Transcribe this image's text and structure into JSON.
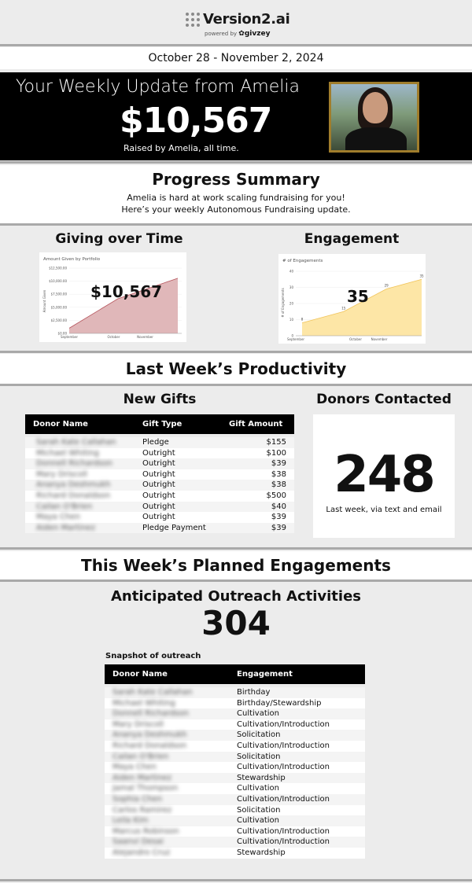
{
  "brand": {
    "name": "Version2.ai",
    "powered_by": "powered by",
    "partner": "givzey"
  },
  "date_range": "October 28 - November 2, 2024",
  "hero": {
    "title": "Your Weekly Update from Amelia",
    "amount": "$10,567",
    "caption": "Raised by Amelia, all time."
  },
  "progress": {
    "title": "Progress Summary",
    "line1": "Amelia is hard at work scaling fundraising for you!",
    "line2": "Here’s your weekly Autonomous Fundraising update."
  },
  "giving_chart": {
    "section_title": "Giving over Time",
    "overlay": "$10,567",
    "chart_data": {
      "type": "area",
      "title": "Amount Given by Portfolio",
      "xlabel": "",
      "ylabel": "Amount Given",
      "categories": [
        "September",
        "October",
        "November"
      ],
      "values": [
        1000,
        6600,
        10567
      ],
      "ylim": [
        0,
        12500
      ],
      "yticks": [
        "$0.00",
        "$2,500.00",
        "$5,000.00",
        "$7,500.00",
        "$10,000.00",
        "$12,500.00"
      ],
      "color": "#e0b7b9"
    }
  },
  "engagement_chart": {
    "section_title": "Engagement",
    "overlay": "35",
    "chart_data": {
      "type": "area",
      "title": "# of Engagements",
      "xlabel": "",
      "ylabel": "# of Engagements",
      "categories": [
        "September",
        "October",
        "November"
      ],
      "points": [
        {
          "label": "8",
          "x": 0.05,
          "y": 8
        },
        {
          "label": "15",
          "x": 0.38,
          "y": 15
        },
        {
          "label": "29",
          "x": 0.72,
          "y": 29
        },
        {
          "label": "35",
          "x": 1.0,
          "y": 35
        }
      ],
      "ylim": [
        0,
        40
      ],
      "yticks": [
        "0",
        "10",
        "20",
        "30",
        "40"
      ],
      "color": "#fde6a6"
    }
  },
  "productivity": {
    "title": "Last Week’s Productivity"
  },
  "gifts": {
    "title": "New Gifts",
    "headers": [
      "Donor Name",
      "Gift Type",
      "Gift Amount"
    ],
    "rows": [
      {
        "name": "Sarah Kate Callahan",
        "type": "Pledge",
        "amount": "$155"
      },
      {
        "name": "Michael Whiting",
        "type": "Outright",
        "amount": "$100"
      },
      {
        "name": "Donnell Richardson",
        "type": "Outright",
        "amount": "$39"
      },
      {
        "name": "Mary Driscoll",
        "type": "Outright",
        "amount": "$38"
      },
      {
        "name": "Ananya Deshmukh",
        "type": "Outright",
        "amount": "$38"
      },
      {
        "name": "Richard Donaldson",
        "type": "Outright",
        "amount": "$500"
      },
      {
        "name": "Cailan O'Brien",
        "type": "Outright",
        "amount": "$40"
      },
      {
        "name": "Maya Chen",
        "type": "Outright",
        "amount": "$39"
      },
      {
        "name": "Aiden Martinez",
        "type": "Pledge Payment",
        "amount": "$39"
      }
    ]
  },
  "donors_contacted": {
    "title": "Donors Contacted",
    "count": "248",
    "caption": "Last week, via text and email"
  },
  "planned": {
    "title": "This Week’s Planned Engagements"
  },
  "outreach": {
    "title": "Anticipated Outreach Activities",
    "count": "304",
    "snapshot_label": "Snapshot of outreach",
    "headers": [
      "Donor Name",
      "Engagement"
    ],
    "rows": [
      {
        "name": "Sarah Kate Callahan",
        "engagement": "Birthday"
      },
      {
        "name": "Michael Whiting",
        "engagement": "Birthday/Stewardship"
      },
      {
        "name": "Donnell Richardson",
        "engagement": "Cultivation"
      },
      {
        "name": "Mary Driscoll",
        "engagement": "Cultivation/Introduction"
      },
      {
        "name": "Ananya Deshmukh",
        "engagement": "Solicitation"
      },
      {
        "name": "Richard Donaldson",
        "engagement": "Cultivation/Introduction"
      },
      {
        "name": "Cailan O'Brien",
        "engagement": "Solicitation"
      },
      {
        "name": "Maya Chen",
        "engagement": "Cultivation/Introduction"
      },
      {
        "name": "Aiden Martinez",
        "engagement": "Stewardship"
      },
      {
        "name": "Jamal Thompson",
        "engagement": "Cultivation"
      },
      {
        "name": "Sophia Chen",
        "engagement": "Cultivation/Introduction"
      },
      {
        "name": "Carlos Ramirez",
        "engagement": "Solicitation"
      },
      {
        "name": "Leila Kim",
        "engagement": "Cultivation"
      },
      {
        "name": "Marcus Robinson",
        "engagement": "Cultivation/Introduction"
      },
      {
        "name": "Saanvi Desai",
        "engagement": "Cultivation/Introduction"
      },
      {
        "name": "Alejandro Cruz",
        "engagement": "Stewardship"
      }
    ]
  }
}
